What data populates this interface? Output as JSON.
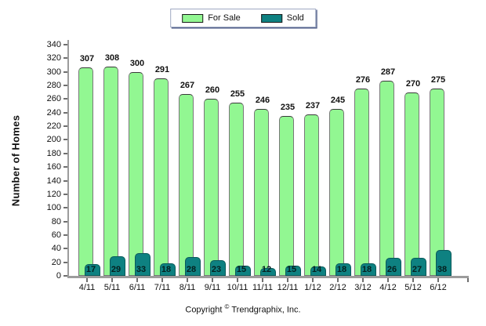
{
  "footer": {
    "copyright_prefix": "Copyright",
    "copyright_symbol": "©",
    "copyright_company": "Trendgraphix, Inc."
  },
  "chart_data": {
    "type": "bar",
    "title": "",
    "xlabel": "",
    "ylabel": "Number of Homes",
    "ylim": [
      0,
      340
    ],
    "ytick_step": 20,
    "grid": false,
    "legend_position": "top-center",
    "bar_style": "rounded-top-overlapping",
    "categories": [
      "4/11",
      "5/11",
      "6/11",
      "7/11",
      "8/11",
      "9/11",
      "10/11",
      "11/11",
      "12/11",
      "1/12",
      "2/12",
      "3/12",
      "4/12",
      "5/12",
      "6/12"
    ],
    "series": [
      {
        "name": "For Sale",
        "color": "#92f792",
        "values": [
          307,
          308,
          300,
          291,
          267,
          260,
          255,
          246,
          235,
          237,
          245,
          276,
          287,
          270,
          275
        ]
      },
      {
        "name": "Sold",
        "color": "#0e8181",
        "values": [
          17,
          29,
          33,
          18,
          28,
          23,
          15,
          12,
          15,
          14,
          18,
          18,
          26,
          27,
          38
        ]
      }
    ]
  }
}
